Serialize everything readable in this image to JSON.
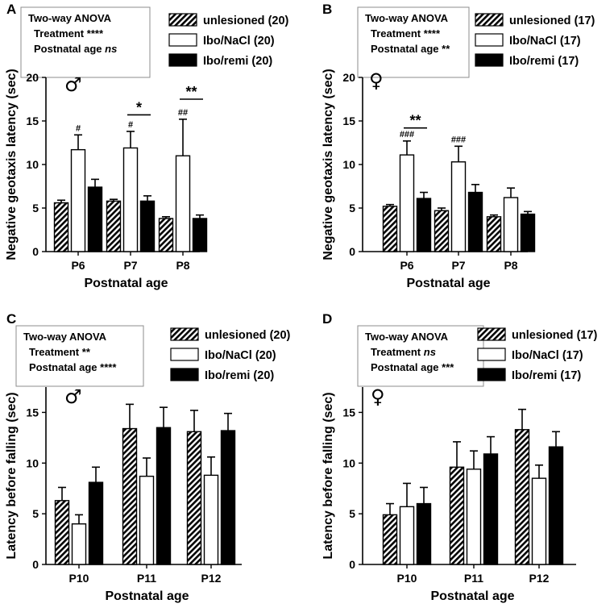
{
  "colors": {
    "ink": "#000000",
    "background": "#ffffff",
    "box_border": "#8c8c8c"
  },
  "chart_data": [
    {
      "type": "bar",
      "panel": "A",
      "symbol": "♂",
      "stats_title": "Two-way ANOVA",
      "stats": [
        {
          "label": "Treatment",
          "value": "****",
          "italic": false
        },
        {
          "label": "Postnatal age",
          "value": "ns",
          "italic": true
        }
      ],
      "categories": [
        "P6",
        "P7",
        "P8"
      ],
      "series": [
        {
          "name": "unlesioned (20)",
          "fill": "hatch",
          "values": [
            5.6,
            5.8,
            3.8
          ],
          "errors": [
            0.3,
            0.2,
            0.2
          ]
        },
        {
          "name": "Ibo/NaCl (20)",
          "fill": "white",
          "values": [
            11.7,
            11.9,
            11.0
          ],
          "errors": [
            1.7,
            1.9,
            4.2
          ]
        },
        {
          "name": "Ibo/remi (20)",
          "fill": "black",
          "values": [
            7.4,
            5.8,
            3.8
          ],
          "errors": [
            0.9,
            0.6,
            0.4
          ]
        }
      ],
      "annotations": [
        {
          "text": "#",
          "category": "P6",
          "series": 1,
          "size": "small"
        },
        {
          "text": "#",
          "category": "P7",
          "series": 1,
          "size": "small"
        },
        {
          "text": "##",
          "category": "P8",
          "series": 1,
          "size": "small"
        },
        {
          "text": "*",
          "category": "P7",
          "from_series": 1,
          "to_series": 2,
          "level": 15.7,
          "size": "large"
        },
        {
          "text": "**",
          "category": "P8",
          "from_series": 1,
          "to_series": 2,
          "level": 17.5,
          "size": "large"
        }
      ],
      "xlabel": "Postnatal age",
      "ylabel": "Negative geotaxis latency (sec)",
      "ylim": [
        0,
        20
      ],
      "yticks": [
        0,
        5,
        10,
        15,
        20
      ]
    },
    {
      "type": "bar",
      "panel": "B",
      "symbol": "♀",
      "stats_title": "Two-way ANOVA",
      "stats": [
        {
          "label": "Treatment",
          "value": "****",
          "italic": false
        },
        {
          "label": "Postnatal age",
          "value": "**",
          "italic": false
        }
      ],
      "categories": [
        "P6",
        "P7",
        "P8"
      ],
      "series": [
        {
          "name": "unlesioned (17)",
          "fill": "hatch",
          "values": [
            5.2,
            4.7,
            4.0
          ],
          "errors": [
            0.2,
            0.3,
            0.2
          ]
        },
        {
          "name": "Ibo/NaCl (17)",
          "fill": "white",
          "values": [
            11.1,
            10.3,
            6.2
          ],
          "errors": [
            1.6,
            1.8,
            1.1
          ]
        },
        {
          "name": "Ibo/remi (17)",
          "fill": "black",
          "values": [
            6.1,
            6.8,
            4.3
          ],
          "errors": [
            0.7,
            0.9,
            0.3
          ]
        }
      ],
      "annotations": [
        {
          "text": "###",
          "category": "P6",
          "series": 1,
          "size": "small"
        },
        {
          "text": "###",
          "category": "P7",
          "series": 1,
          "size": "small"
        },
        {
          "text": "**",
          "category": "P6",
          "from_series": 1,
          "to_series": 2,
          "level": 14.2,
          "size": "large"
        }
      ],
      "xlabel": "Postnatal age",
      "ylabel": "Negative geotaxis latency (sec)",
      "ylim": [
        0,
        20
      ],
      "yticks": [
        0,
        5,
        10,
        15,
        20
      ]
    },
    {
      "type": "bar",
      "panel": "C",
      "symbol": "♂",
      "stats_title": "Two-way ANOVA",
      "stats": [
        {
          "label": "Treatment",
          "value": "**",
          "italic": false
        },
        {
          "label": "Postnatal age",
          "value": "****",
          "italic": false
        }
      ],
      "categories": [
        "P10",
        "P11",
        "P12"
      ],
      "series": [
        {
          "name": "unlesioned (20)",
          "fill": "hatch",
          "values": [
            6.3,
            13.4,
            13.1
          ],
          "errors": [
            1.3,
            2.4,
            2.1
          ]
        },
        {
          "name": "Ibo/NaCl (20)",
          "fill": "white",
          "values": [
            4.0,
            8.7,
            8.8
          ],
          "errors": [
            0.9,
            1.8,
            1.8
          ]
        },
        {
          "name": "Ibo/remi (20)",
          "fill": "black",
          "values": [
            8.1,
            13.5,
            13.2
          ],
          "errors": [
            1.5,
            2.0,
            1.7
          ]
        }
      ],
      "annotations": [],
      "xlabel": "Postnatal age",
      "ylabel": "Latency before falling (sec)",
      "ylim": [
        0,
        17.5
      ],
      "yticks": [
        0,
        5,
        10,
        15
      ]
    },
    {
      "type": "bar",
      "panel": "D",
      "symbol": "♀",
      "stats_title": "Two-way ANOVA",
      "stats": [
        {
          "label": "Treatment",
          "value": "ns",
          "italic": true
        },
        {
          "label": "Postnatal age",
          "value": "***",
          "italic": false
        }
      ],
      "categories": [
        "P10",
        "P11",
        "P12"
      ],
      "series": [
        {
          "name": "unlesioned (17)",
          "fill": "hatch",
          "values": [
            4.9,
            9.6,
            13.3
          ],
          "errors": [
            1.1,
            2.5,
            2.0
          ]
        },
        {
          "name": "Ibo/NaCl (17)",
          "fill": "white",
          "values": [
            5.7,
            9.4,
            8.5
          ],
          "errors": [
            2.3,
            1.8,
            1.3
          ]
        },
        {
          "name": "Ibo/remi (17)",
          "fill": "black",
          "values": [
            6.0,
            10.9,
            11.6
          ],
          "errors": [
            1.6,
            1.7,
            1.5
          ]
        }
      ],
      "annotations": [],
      "xlabel": "Postnatal age",
      "ylabel": "Latency before falling (sec)",
      "ylim": [
        0,
        17.5
      ],
      "yticks": [
        0,
        5,
        10,
        15
      ]
    }
  ]
}
